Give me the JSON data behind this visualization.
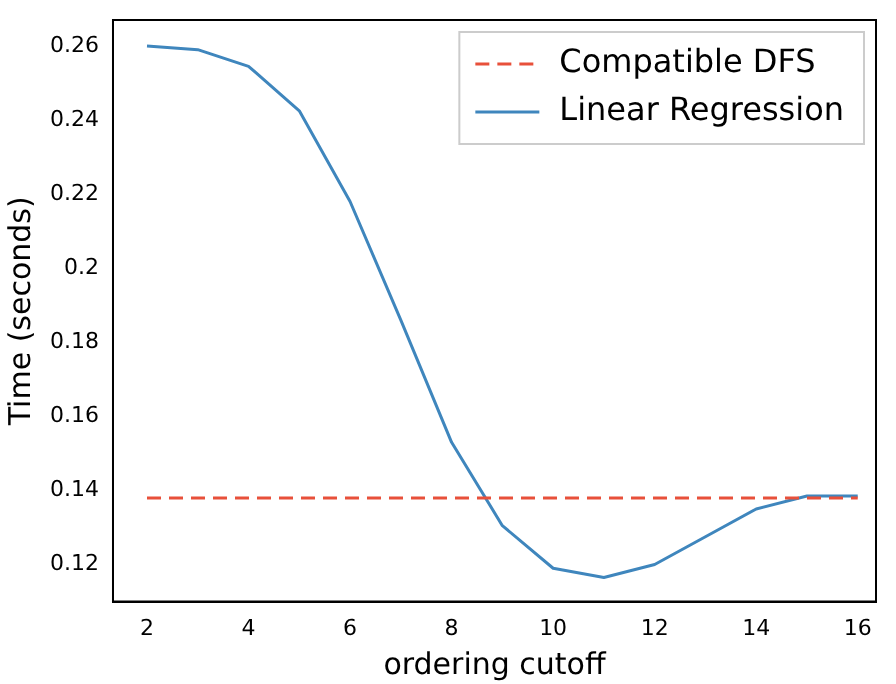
{
  "chart_data": {
    "type": "line",
    "xlabel": "ordering cutoff",
    "ylabel": "Time (seconds)",
    "x": [
      2,
      3,
      4,
      5,
      6,
      7,
      8,
      9,
      10,
      11,
      12,
      13,
      14,
      15,
      16
    ],
    "series": [
      {
        "name": "Compatible DFS",
        "color": "#e8503a",
        "line_style": "dashed",
        "x": [
          2,
          16
        ],
        "values": [
          0.138,
          0.138
        ]
      },
      {
        "name": "Linear Regression",
        "color": "#3f86bd",
        "line_style": "solid",
        "values": [
          0.26,
          0.259,
          0.2545,
          0.2425,
          0.218,
          0.186,
          0.153,
          0.1305,
          0.119,
          0.1165,
          0.12,
          0.1275,
          0.135,
          0.1385,
          0.1385
        ]
      }
    ],
    "xlim": [
      1.33,
      16.36
    ],
    "ylim": [
      0.11,
      0.267
    ],
    "xticks": [
      2,
      4,
      6,
      8,
      10,
      12,
      14,
      16
    ],
    "yticks": [
      0.12,
      0.14,
      0.16,
      0.18,
      0.2,
      0.22,
      0.24,
      0.26
    ],
    "grid": false,
    "legend": "top right",
    "marker": "none"
  }
}
